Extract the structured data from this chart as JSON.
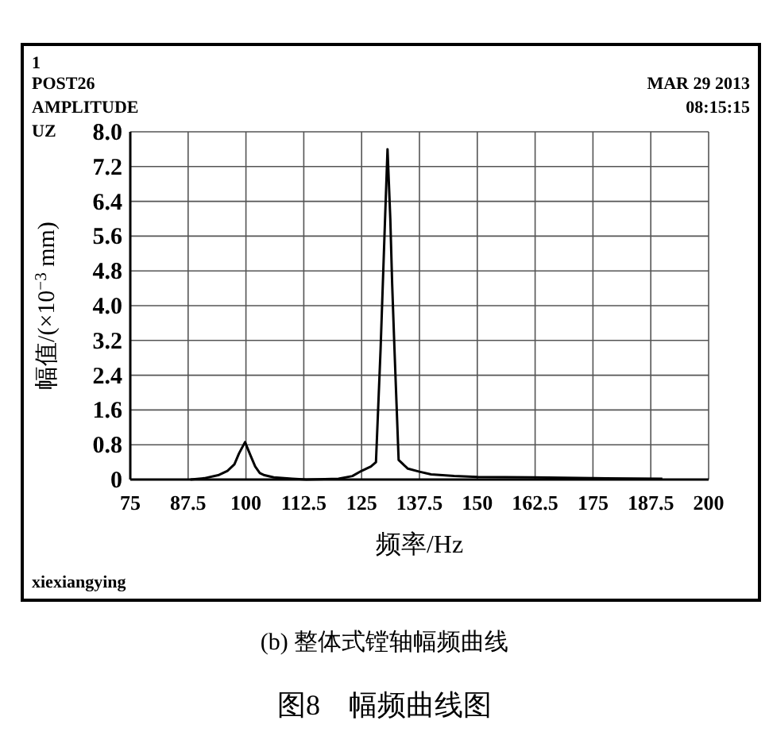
{
  "chart_data": {
    "type": "line",
    "title": "图8　幅频曲线图",
    "subtitle": "(b) 整体式镗轴幅频曲线",
    "xlabel": "频率/Hz",
    "ylabel": "幅值/(×10$^{−3}$ mm)",
    "annotations": [
      "1",
      "POST26",
      "AMPLITUDE",
      "UZ",
      "MAR  29  2013",
      "08:15:15",
      "xiexiangying"
    ],
    "series": [
      {
        "color": "#000000",
        "x": [
          88,
          91,
          94,
          96,
          97.5,
          98.5,
          99.8,
          101,
          102,
          103,
          104,
          106,
          110,
          113,
          117,
          120,
          123,
          125,
          127,
          128.1,
          129.1,
          130.1,
          130.6,
          131.2,
          131.6,
          132.1,
          133,
          135,
          137.5,
          140,
          145,
          150,
          162,
          175,
          190
        ],
        "values": [
          0,
          0.03,
          0.1,
          0.2,
          0.35,
          0.6,
          0.86,
          0.55,
          0.3,
          0.15,
          0.1,
          0.05,
          0.02,
          0,
          0.01,
          0.02,
          0.08,
          0.2,
          0.3,
          0.4,
          3.0,
          6.1,
          7.6,
          6.0,
          4.5,
          3.0,
          0.45,
          0.25,
          0.18,
          0.12,
          0.08,
          0.06,
          0.05,
          0.03,
          0.02
        ]
      }
    ],
    "xlim": [
      75,
      200
    ],
    "ylim": [
      0,
      8
    ],
    "xticks": [
      75,
      {
        "value": 87.5,
        "label": "87.5"
      },
      100,
      {
        "value": 112.5,
        "label": "112.5"
      },
      125,
      {
        "value": 137.5,
        "label": "137.5"
      },
      150,
      {
        "value": 162.5,
        "label": "162.5"
      },
      175,
      {
        "value": 187.5,
        "label": "187.5"
      },
      200
    ],
    "yticks": [
      0,
      0.8,
      1.6,
      2.4,
      3.2,
      {
        "value": 4,
        "label": "4.0"
      },
      4.8,
      5.6,
      6.4,
      7.2,
      {
        "value": 8,
        "label": "8.0"
      }
    ],
    "grid": true,
    "marker": "none",
    "line_style": "solid"
  }
}
